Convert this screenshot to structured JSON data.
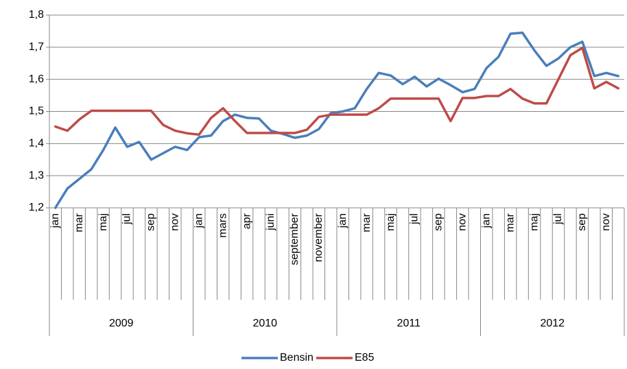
{
  "chart_data": {
    "type": "line",
    "categories": [
      "jan",
      null,
      "mar",
      null,
      "maj",
      null,
      "jul",
      null,
      "sep",
      null,
      "nov",
      null,
      "jan",
      null,
      "mars",
      null,
      "apr",
      null,
      "juni",
      null,
      "september",
      null,
      "november",
      null,
      "jan",
      null,
      "mar",
      null,
      "maj",
      null,
      "jul",
      null,
      "sep",
      null,
      "nov",
      null,
      "jan",
      null,
      "mar",
      null,
      "maj",
      null,
      "jul",
      null,
      "sep",
      null,
      "nov",
      null
    ],
    "groups": [
      "2009",
      "2010",
      "2011",
      "2012"
    ],
    "series": [
      {
        "name": "Bensin",
        "color": "#4a7ebb",
        "values": [
          1.2,
          1.26,
          1.29,
          1.32,
          1.38,
          1.45,
          1.39,
          1.405,
          1.35,
          1.37,
          1.39,
          1.38,
          1.42,
          1.425,
          1.47,
          1.49,
          1.48,
          1.478,
          1.44,
          1.43,
          1.418,
          1.425,
          1.445,
          1.495,
          1.5,
          1.51,
          1.57,
          1.62,
          1.612,
          1.585,
          1.608,
          1.578,
          1.602,
          1.582,
          1.56,
          1.57,
          1.635,
          1.67,
          1.742,
          1.745,
          1.69,
          1.642,
          1.665,
          1.7,
          1.717,
          1.61,
          1.62,
          1.61
        ]
      },
      {
        "name": "E85",
        "color": "#be4b48",
        "values": [
          1.453,
          1.44,
          1.475,
          1.502,
          1.502,
          1.502,
          1.502,
          1.502,
          1.502,
          1.458,
          1.44,
          1.432,
          1.428,
          1.48,
          1.51,
          1.47,
          1.433,
          1.433,
          1.433,
          1.433,
          1.433,
          1.443,
          1.483,
          1.49,
          1.49,
          1.49,
          1.49,
          1.51,
          1.54,
          1.54,
          1.54,
          1.54,
          1.54,
          1.47,
          1.542,
          1.542,
          1.548,
          1.548,
          1.57,
          1.54,
          1.525,
          1.525,
          1.6,
          1.675,
          1.698,
          1.572,
          1.592,
          1.572
        ]
      }
    ],
    "ylim": [
      1.2,
      1.8
    ],
    "yticks": [
      {
        "value": 1.2,
        "label": "1,2"
      },
      {
        "value": 1.3,
        "label": "1,3"
      },
      {
        "value": 1.4,
        "label": "1,4"
      },
      {
        "value": 1.5,
        "label": "1,5"
      },
      {
        "value": 1.6,
        "label": "1,6"
      },
      {
        "value": 1.7,
        "label": "1,7"
      },
      {
        "value": 1.8,
        "label": "1,8"
      }
    ],
    "grid": true,
    "legend": "bottom"
  }
}
